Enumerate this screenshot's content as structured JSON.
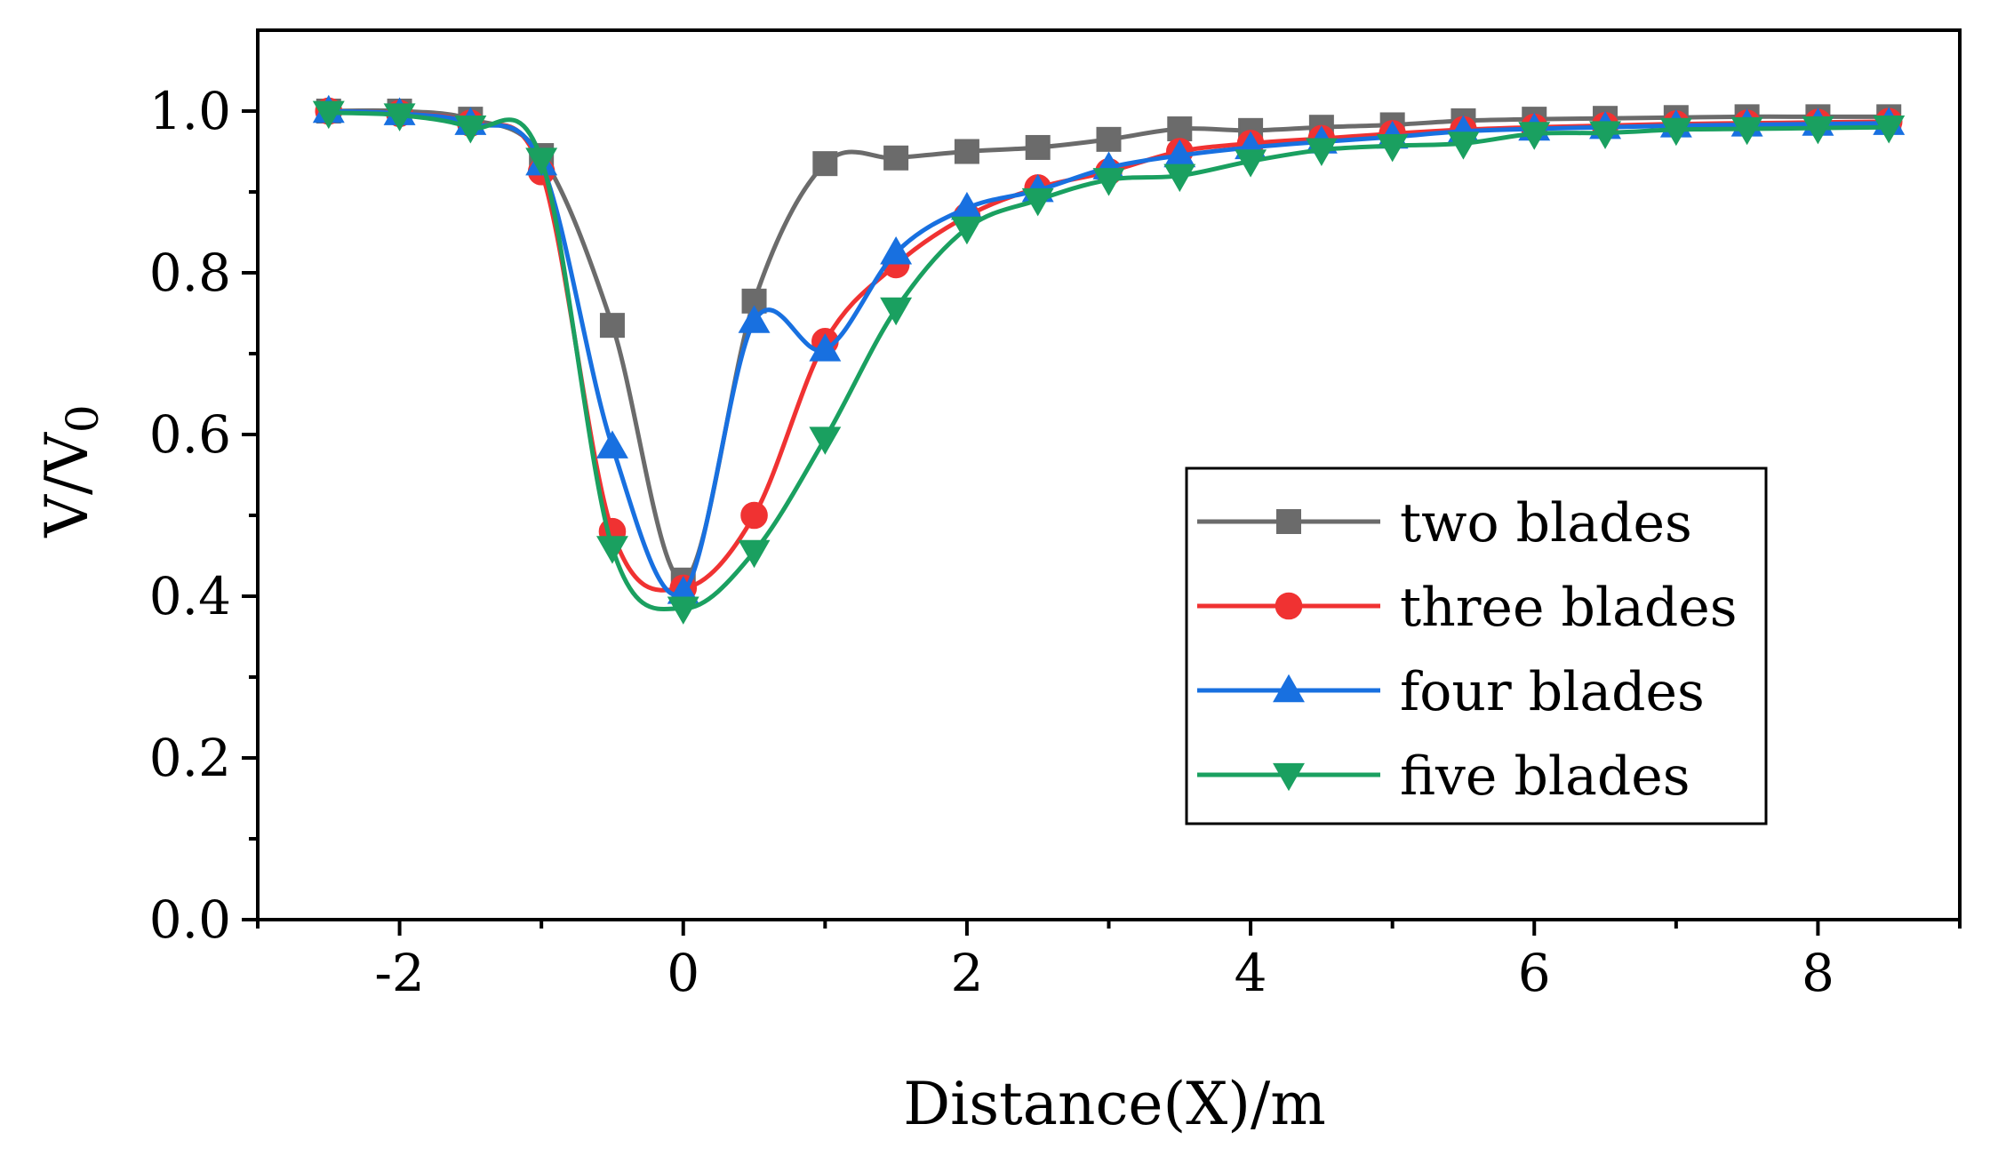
{
  "chart_data": {
    "type": "line",
    "title": "",
    "xlabel": "Distance(X)/m",
    "ylabel": "V/V",
    "ylabel_subscript": "0",
    "xlim": [
      -3,
      9
    ],
    "ylim": [
      0,
      1.1
    ],
    "xticks": [
      -2,
      0,
      2,
      4,
      6,
      8
    ],
    "xtick_labels": [
      "-2",
      "0",
      "2",
      "4",
      "6",
      "8"
    ],
    "yticks": [
      0,
      0.2,
      0.4,
      0.6,
      0.8,
      1.0
    ],
    "ytick_labels": [
      "0.0",
      "0.2",
      "0.4",
      "0.6",
      "0.8",
      "1.0"
    ],
    "legend_position": "center-right",
    "x": [
      -2.5,
      -2,
      -1.5,
      -1,
      -0.5,
      0,
      0.5,
      1,
      1.5,
      2,
      2.5,
      3,
      3.5,
      4,
      4.5,
      5,
      5.5,
      6,
      6.5,
      7,
      7.5,
      8,
      8.5
    ],
    "series": [
      {
        "name": "two blades",
        "color": "#6b6b6b",
        "marker": "square",
        "values": [
          1.0,
          1.0,
          0.99,
          0.945,
          0.735,
          0.42,
          0.765,
          0.935,
          0.942,
          0.95,
          0.955,
          0.965,
          0.978,
          0.976,
          0.98,
          0.983,
          0.988,
          0.99,
          0.991,
          0.992,
          0.993,
          0.993,
          0.993
        ]
      },
      {
        "name": "three blades",
        "color": "#f03232",
        "marker": "circle",
        "values": [
          1.0,
          0.997,
          0.985,
          0.925,
          0.48,
          0.41,
          0.5,
          0.715,
          0.81,
          0.87,
          0.905,
          0.925,
          0.95,
          0.96,
          0.966,
          0.972,
          0.977,
          0.98,
          0.982,
          0.984,
          0.985,
          0.986,
          0.987
        ]
      },
      {
        "name": "four blades",
        "color": "#1870e0",
        "marker": "triangle-up",
        "values": [
          1.0,
          0.997,
          0.985,
          0.935,
          0.585,
          0.405,
          0.74,
          0.705,
          0.825,
          0.88,
          0.902,
          0.93,
          0.945,
          0.955,
          0.962,
          0.968,
          0.975,
          0.978,
          0.98,
          0.982,
          0.983,
          0.984,
          0.985
        ]
      },
      {
        "name": "five blades",
        "color": "#1aa060",
        "marker": "triangle-down",
        "values": [
          0.998,
          0.995,
          0.98,
          0.94,
          0.46,
          0.385,
          0.455,
          0.595,
          0.755,
          0.855,
          0.89,
          0.915,
          0.92,
          0.938,
          0.952,
          0.957,
          0.96,
          0.972,
          0.973,
          0.977,
          0.978,
          0.979,
          0.98
        ]
      }
    ]
  }
}
